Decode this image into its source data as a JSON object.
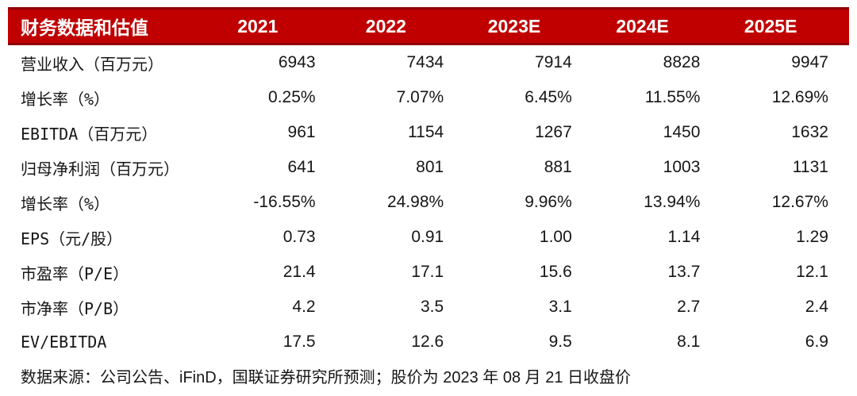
{
  "colors": {
    "header_background": "#C00000",
    "header_border": "#8F0000",
    "header_text": "#FFFFFF",
    "body_text": "#161616",
    "page_background": "#FFFFFF"
  },
  "chart_data": {
    "type": "table",
    "title": "财务数据和估值",
    "columns": [
      "财务数据和估值",
      "2021",
      "2022",
      "2023E",
      "2024E",
      "2025E"
    ],
    "rows": [
      {
        "label": "营业收入（百万元）",
        "values": [
          "6943",
          "7434",
          "7914",
          "8828",
          "9947"
        ]
      },
      {
        "label": "增长率（%）",
        "values": [
          "0.25%",
          "7.07%",
          "6.45%",
          "11.55%",
          "12.69%"
        ]
      },
      {
        "label": "EBITDA（百万元）",
        "values": [
          "961",
          "1154",
          "1267",
          "1450",
          "1632"
        ]
      },
      {
        "label": "归母净利润（百万元）",
        "values": [
          "641",
          "801",
          "881",
          "1003",
          "1131"
        ]
      },
      {
        "label": "增长率（%）",
        "values": [
          "-16.55%",
          "24.98%",
          "9.96%",
          "13.94%",
          "12.67%"
        ]
      },
      {
        "label": "EPS（元/股）",
        "values": [
          "0.73",
          "0.91",
          "1.00",
          "1.14",
          "1.29"
        ]
      },
      {
        "label": "市盈率（P/E）",
        "values": [
          "21.4",
          "17.1",
          "15.6",
          "13.7",
          "12.1"
        ]
      },
      {
        "label": "市净率（P/B）",
        "values": [
          "4.2",
          "3.5",
          "3.1",
          "2.7",
          "2.4"
        ]
      },
      {
        "label": "EV/EBITDA",
        "values": [
          "17.5",
          "12.6",
          "9.5",
          "8.1",
          "6.9"
        ]
      }
    ],
    "source": "数据来源：公司公告、iFinD，国联证券研究所预测；股价为 2023 年 08 月 21 日收盘价"
  }
}
